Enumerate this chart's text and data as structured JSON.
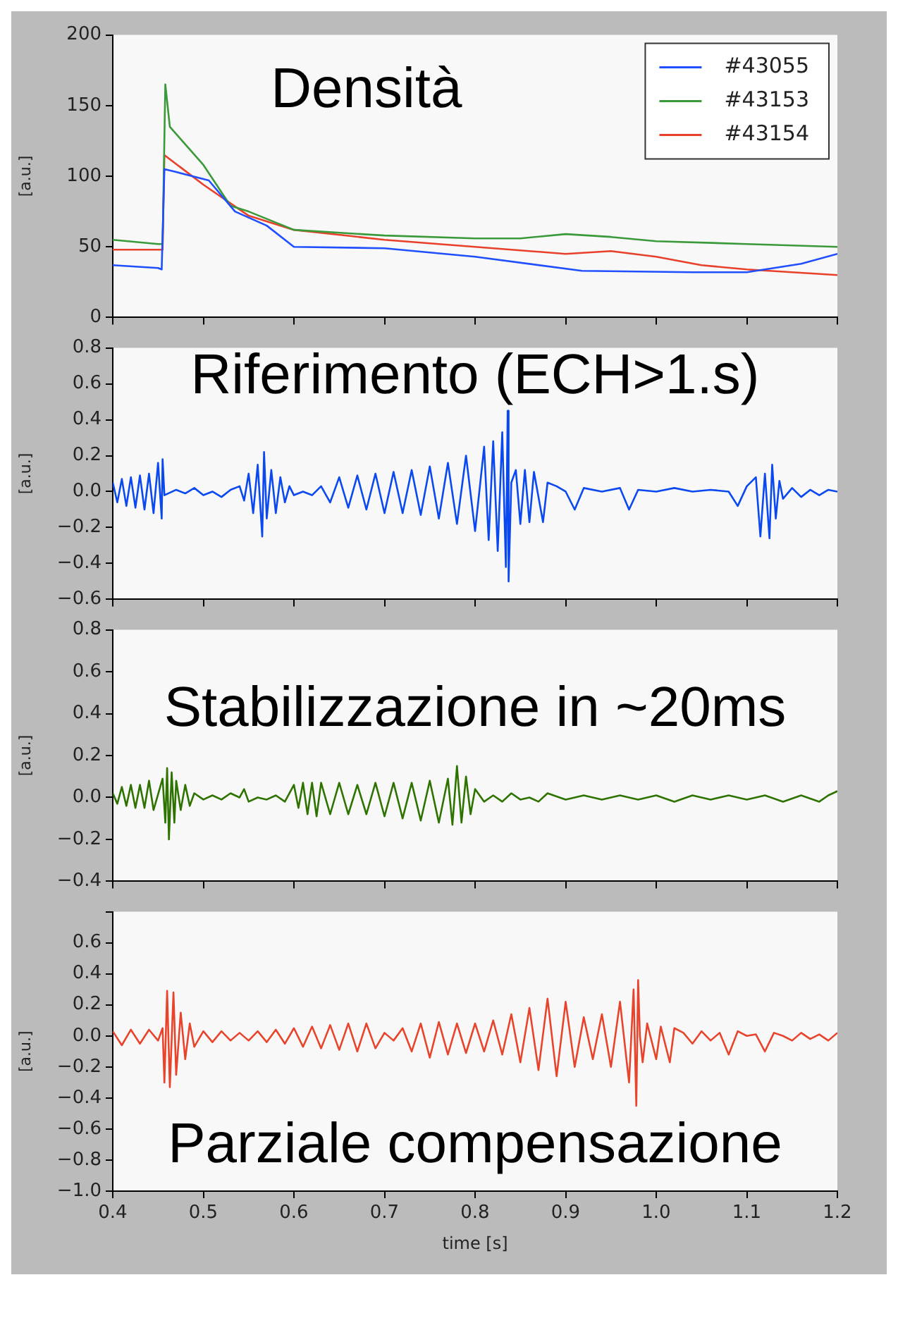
{
  "chart_data": [
    {
      "type": "line",
      "ylabel": "[a.u.]",
      "annotations": [
        "Densità"
      ],
      "legend": "top right",
      "tick_labels": "y",
      "xlim": [
        0.4,
        1.2
      ],
      "xticks": [
        0.4,
        0.5,
        0.6,
        0.7,
        0.8,
        0.9,
        1.0,
        1.1,
        1.2
      ],
      "ylim": [
        0,
        200
      ],
      "yticks": [
        0,
        50,
        100,
        150,
        200
      ],
      "series": [
        {
          "name": "#43055",
          "color": "#1f4fff",
          "x": [
            0.4,
            0.45,
            0.454,
            0.457,
            0.47,
            0.506,
            0.535,
            0.57,
            0.6,
            0.7,
            0.8,
            0.918,
            1.04,
            1.1,
            1.16,
            1.2
          ],
          "values": [
            37,
            35,
            34,
            105,
            103,
            97,
            75,
            65,
            50,
            49,
            43,
            33,
            32,
            32,
            38,
            45
          ]
        },
        {
          "name": "#43153",
          "color": "#3a9a3a",
          "x": [
            0.4,
            0.45,
            0.455,
            0.458,
            0.463,
            0.5,
            0.53,
            0.55,
            0.6,
            0.7,
            0.8,
            0.85,
            0.9,
            0.95,
            1.0,
            1.1,
            1.2
          ],
          "values": [
            55,
            52,
            52,
            165,
            135,
            108,
            79,
            75,
            62,
            58,
            56,
            56,
            59,
            57,
            54,
            52,
            50
          ]
        },
        {
          "name": "#43154",
          "color": "#e8402a",
          "x": [
            0.4,
            0.45,
            0.455,
            0.457,
            0.5,
            0.55,
            0.6,
            0.7,
            0.8,
            0.9,
            0.95,
            1.0,
            1.05,
            1.1,
            1.15,
            1.2
          ],
          "values": [
            48,
            48,
            48,
            115,
            94,
            72,
            62,
            55,
            50,
            45,
            47,
            43,
            37,
            34,
            32,
            30
          ]
        }
      ]
    },
    {
      "type": "line",
      "ylabel": "[a.u.]",
      "annotations": [
        "Riferimento (ECH>1.s)"
      ],
      "tick_labels": "y",
      "xlim": [
        0.4,
        1.2
      ],
      "xticks": [
        0.4,
        0.5,
        0.6,
        0.7,
        0.8,
        0.9,
        1.0,
        1.1,
        1.2
      ],
      "ylim": [
        -0.6,
        0.8
      ],
      "yticks": [
        {
          "value": -0.6,
          "label": "−0.6"
        },
        {
          "value": -0.4,
          "label": "−0.4"
        },
        {
          "value": -0.2,
          "label": "−0.2"
        },
        {
          "value": 0,
          "label": "0.0"
        },
        {
          "value": 0.2,
          "label": "0.2"
        },
        {
          "value": 0.4,
          "label": "0.4"
        },
        {
          "value": 0.6,
          "label": "0.6"
        },
        {
          "value": 0.8,
          "label": "0.8"
        }
      ],
      "series": [
        {
          "color": "#0a48f0",
          "x": [
            0.4,
            0.405,
            0.41,
            0.415,
            0.42,
            0.425,
            0.43,
            0.435,
            0.44,
            0.445,
            0.45,
            0.454,
            0.455,
            0.457,
            0.47,
            0.48,
            0.49,
            0.5,
            0.51,
            0.52,
            0.53,
            0.54,
            0.545,
            0.55,
            0.555,
            0.56,
            0.565,
            0.567,
            0.57,
            0.575,
            0.58,
            0.585,
            0.59,
            0.595,
            0.6,
            0.61,
            0.62,
            0.63,
            0.64,
            0.65,
            0.66,
            0.67,
            0.68,
            0.69,
            0.7,
            0.71,
            0.72,
            0.73,
            0.74,
            0.75,
            0.76,
            0.77,
            0.78,
            0.79,
            0.8,
            0.81,
            0.815,
            0.82,
            0.825,
            0.83,
            0.834,
            0.836,
            0.837,
            0.84,
            0.845,
            0.85,
            0.855,
            0.86,
            0.865,
            0.875,
            0.88,
            0.89,
            0.9,
            0.91,
            0.92,
            0.94,
            0.96,
            0.97,
            0.98,
            1.0,
            1.02,
            1.04,
            1.06,
            1.08,
            1.09,
            1.1,
            1.11,
            1.115,
            1.12,
            1.125,
            1.128,
            1.132,
            1.136,
            1.14,
            1.15,
            1.16,
            1.17,
            1.18,
            1.19,
            1.2
          ],
          "values": [
            0.05,
            -0.06,
            0.07,
            -0.08,
            0.08,
            -0.09,
            0.09,
            -0.1,
            0.1,
            -0.12,
            0.16,
            -0.15,
            0.18,
            -0.02,
            0.01,
            -0.01,
            0.02,
            -0.02,
            0.0,
            -0.03,
            0.01,
            0.03,
            -0.05,
            0.1,
            -0.12,
            0.15,
            -0.25,
            0.22,
            -0.15,
            0.12,
            -0.12,
            0.08,
            -0.06,
            0.03,
            -0.02,
            0.0,
            -0.02,
            0.03,
            -0.06,
            0.08,
            -0.09,
            0.09,
            -0.1,
            0.1,
            -0.12,
            0.11,
            -0.12,
            0.12,
            -0.13,
            0.14,
            -0.15,
            0.16,
            -0.18,
            0.2,
            -0.22,
            0.25,
            -0.27,
            0.28,
            -0.33,
            0.33,
            -0.42,
            0.45,
            -0.5,
            0.05,
            0.12,
            -0.18,
            0.12,
            -0.17,
            0.11,
            -0.17,
            0.05,
            0.03,
            0.0,
            -0.1,
            0.02,
            0.0,
            0.02,
            -0.1,
            0.01,
            0.0,
            0.02,
            0.0,
            0.01,
            0.0,
            -0.08,
            0.03,
            0.08,
            -0.25,
            0.1,
            -0.26,
            0.15,
            -0.15,
            0.06,
            -0.04,
            0.02,
            -0.03,
            0.01,
            -0.02,
            0.01,
            0.0
          ]
        }
      ]
    },
    {
      "type": "line",
      "ylabel": "[a.u.]",
      "annotations": [
        "Stabilizzazione in ~20ms"
      ],
      "tick_labels": "y",
      "xlim": [
        0.4,
        1.2
      ],
      "xticks": [
        0.4,
        0.5,
        0.6,
        0.7,
        0.8,
        0.9,
        1.0,
        1.1,
        1.2
      ],
      "ylim": [
        -0.4,
        0.8
      ],
      "yticks": [
        {
          "value": -0.4,
          "label": "−0.4"
        },
        {
          "value": -0.2,
          "label": "−0.2"
        },
        {
          "value": 0,
          "label": "0.0"
        },
        {
          "value": 0.2,
          "label": "0.2"
        },
        {
          "value": 0.4,
          "label": "0.4"
        },
        {
          "value": 0.6,
          "label": "0.6"
        },
        {
          "value": 0.8,
          "label": "0.8"
        }
      ],
      "series": [
        {
          "color": "#2e7300",
          "x": [
            0.4,
            0.405,
            0.41,
            0.415,
            0.42,
            0.425,
            0.43,
            0.435,
            0.44,
            0.445,
            0.455,
            0.458,
            0.46,
            0.462,
            0.465,
            0.468,
            0.47,
            0.475,
            0.48,
            0.485,
            0.49,
            0.5,
            0.51,
            0.52,
            0.53,
            0.54,
            0.545,
            0.55,
            0.56,
            0.57,
            0.58,
            0.59,
            0.6,
            0.605,
            0.61,
            0.615,
            0.62,
            0.625,
            0.63,
            0.64,
            0.65,
            0.66,
            0.67,
            0.68,
            0.69,
            0.7,
            0.71,
            0.72,
            0.73,
            0.74,
            0.75,
            0.76,
            0.77,
            0.775,
            0.78,
            0.785,
            0.79,
            0.795,
            0.8,
            0.81,
            0.82,
            0.83,
            0.84,
            0.85,
            0.86,
            0.87,
            0.88,
            0.9,
            0.92,
            0.94,
            0.96,
            0.98,
            1.0,
            1.02,
            1.04,
            1.06,
            1.08,
            1.1,
            1.12,
            1.14,
            1.16,
            1.18,
            1.19,
            1.2
          ],
          "values": [
            0.02,
            -0.03,
            0.05,
            -0.04,
            0.06,
            -0.05,
            0.06,
            -0.05,
            0.08,
            -0.06,
            0.09,
            -0.12,
            0.14,
            -0.2,
            0.12,
            -0.12,
            0.08,
            -0.06,
            0.06,
            -0.04,
            0.02,
            -0.01,
            0.01,
            -0.01,
            0.02,
            0.0,
            0.04,
            -0.02,
            0.0,
            -0.01,
            0.01,
            -0.02,
            0.06,
            -0.05,
            0.07,
            -0.08,
            0.07,
            -0.09,
            0.07,
            -0.08,
            0.07,
            -0.08,
            0.06,
            -0.08,
            0.07,
            -0.09,
            0.07,
            -0.1,
            0.07,
            -0.11,
            0.08,
            -0.12,
            0.09,
            -0.13,
            0.15,
            -0.12,
            0.1,
            -0.08,
            0.04,
            -0.02,
            0.01,
            -0.02,
            0.02,
            -0.01,
            0.0,
            -0.02,
            0.02,
            -0.01,
            0.01,
            -0.01,
            0.01,
            -0.01,
            0.01,
            -0.02,
            0.01,
            -0.01,
            0.01,
            -0.01,
            0.01,
            -0.02,
            0.01,
            -0.02,
            0.01,
            0.03
          ]
        }
      ]
    },
    {
      "type": "line",
      "ylabel": "[a.u.]",
      "xlabel": "time [s]",
      "annotations": [
        "Parziale compensazione"
      ],
      "xlim": [
        0.4,
        1.2
      ],
      "xticks": [
        0.4,
        0.5,
        0.6,
        0.7,
        0.8,
        0.9,
        {
          "value": 1.0,
          "label": "1.0"
        },
        1.1,
        1.2
      ],
      "ylim": [
        -1.0,
        0.8
      ],
      "yticks": [
        {
          "value": -1.0,
          "label": "−1.0"
        },
        {
          "value": -0.8,
          "label": "−0.8"
        },
        {
          "value": -0.6,
          "label": "−0.6"
        },
        {
          "value": -0.4,
          "label": "−0.4"
        },
        {
          "value": -0.2,
          "label": "−0.2"
        },
        {
          "value": 0,
          "label": "0.0"
        },
        {
          "value": 0.2,
          "label": "0.2"
        },
        {
          "value": 0.4,
          "label": "0.4"
        },
        {
          "value": 0.6,
          "label": "0.6"
        },
        {
          "value": 0.8,
          "label": null
        }
      ],
      "series": [
        {
          "color": "#e8442c",
          "x": [
            0.4,
            0.41,
            0.42,
            0.43,
            0.44,
            0.45,
            0.455,
            0.457,
            0.46,
            0.463,
            0.467,
            0.47,
            0.475,
            0.48,
            0.485,
            0.49,
            0.5,
            0.51,
            0.52,
            0.53,
            0.54,
            0.55,
            0.56,
            0.57,
            0.58,
            0.59,
            0.6,
            0.61,
            0.62,
            0.63,
            0.64,
            0.65,
            0.66,
            0.67,
            0.68,
            0.69,
            0.7,
            0.71,
            0.72,
            0.73,
            0.74,
            0.75,
            0.76,
            0.77,
            0.78,
            0.79,
            0.8,
            0.81,
            0.82,
            0.83,
            0.84,
            0.85,
            0.86,
            0.87,
            0.88,
            0.89,
            0.9,
            0.91,
            0.92,
            0.93,
            0.94,
            0.95,
            0.96,
            0.97,
            0.975,
            0.978,
            0.98,
            0.982,
            0.985,
            0.99,
            1.0,
            1.005,
            1.015,
            1.02,
            1.03,
            1.04,
            1.05,
            1.06,
            1.07,
            1.08,
            1.09,
            1.1,
            1.11,
            1.12,
            1.13,
            1.14,
            1.15,
            1.16,
            1.17,
            1.18,
            1.19,
            1.2
          ],
          "values": [
            0.03,
            -0.06,
            0.04,
            -0.05,
            0.04,
            -0.03,
            0.05,
            -0.3,
            0.29,
            -0.33,
            0.28,
            -0.25,
            0.15,
            -0.15,
            0.08,
            -0.07,
            0.03,
            -0.04,
            0.03,
            -0.03,
            0.02,
            -0.03,
            0.03,
            -0.04,
            0.04,
            -0.05,
            0.05,
            -0.07,
            0.06,
            -0.08,
            0.07,
            -0.09,
            0.08,
            -0.1,
            0.08,
            -0.08,
            0.02,
            -0.03,
            0.05,
            -0.1,
            0.08,
            -0.14,
            0.09,
            -0.12,
            0.08,
            -0.11,
            0.08,
            -0.1,
            0.1,
            -0.12,
            0.14,
            -0.17,
            0.18,
            -0.22,
            0.24,
            -0.26,
            0.22,
            -0.2,
            0.12,
            -0.15,
            0.14,
            -0.2,
            0.22,
            -0.3,
            0.3,
            -0.45,
            0.36,
            0.0,
            -0.17,
            0.08,
            -0.15,
            0.06,
            -0.17,
            0.05,
            0.02,
            -0.05,
            0.03,
            -0.03,
            0.02,
            -0.12,
            0.03,
            0.0,
            0.01,
            -0.1,
            0.02,
            0.0,
            -0.03,
            0.02,
            -0.02,
            0.01,
            -0.03,
            0.02
          ]
        }
      ]
    }
  ]
}
